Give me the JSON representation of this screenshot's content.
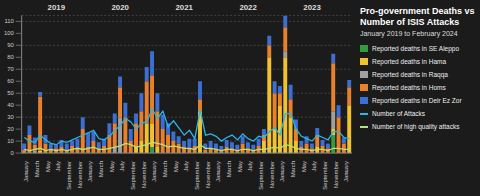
{
  "chart_data": {
    "type": "bar",
    "title": "Pro-government Deaths vs Number of ISIS Attacks",
    "subtitle": "January 2019 to February 2024",
    "categories": [
      "January",
      null,
      "March",
      null,
      "May",
      null,
      "July",
      null,
      "September",
      null,
      "November",
      null,
      "January",
      null,
      "March",
      null,
      "May",
      null,
      "July",
      null,
      "September",
      null,
      "November",
      null,
      "January",
      null,
      "March",
      null,
      "May",
      null,
      "July",
      null,
      "September",
      null,
      "November",
      null,
      "January",
      null,
      "March",
      null,
      "May",
      null,
      "July",
      null,
      "September",
      null,
      "November",
      null,
      "January",
      null,
      "March",
      null,
      "May",
      null,
      "July",
      null,
      "September",
      null,
      "November",
      null,
      "January",
      null
    ],
    "series": [
      {
        "name": "Reported deaths in SE Aleppo",
        "type": "bar",
        "color": "#2e9e3e",
        "values": [
          0,
          0,
          0,
          0,
          0,
          0,
          0,
          0,
          0,
          0,
          0,
          0,
          0,
          0,
          0,
          0,
          0,
          0,
          0,
          0,
          0,
          0,
          0,
          0,
          5,
          0,
          0,
          0,
          0,
          0,
          0,
          0,
          0,
          0,
          0,
          0,
          0,
          0,
          0,
          0,
          0,
          0,
          0,
          0,
          0,
          0,
          0,
          0,
          0,
          0,
          0,
          0,
          0,
          0,
          0,
          0,
          0,
          0,
          15,
          0,
          0,
          0
        ]
      },
      {
        "name": "Reported deaths in Hama",
        "type": "bar",
        "color": "#f2c12e",
        "values": [
          0,
          0,
          0,
          2,
          0,
          0,
          0,
          0,
          0,
          0,
          0,
          0,
          0,
          0,
          0,
          0,
          0,
          0,
          0,
          0,
          0,
          5,
          10,
          25,
          20,
          5,
          0,
          0,
          0,
          0,
          0,
          0,
          0,
          35,
          0,
          0,
          0,
          0,
          0,
          0,
          0,
          0,
          0,
          0,
          0,
          10,
          80,
          20,
          40,
          80,
          30,
          10,
          0,
          0,
          0,
          5,
          0,
          0,
          5,
          0,
          0,
          40
        ]
      },
      {
        "name": "Reported deaths in Raqqa",
        "type": "bar",
        "color": "#a0a0a0",
        "values": [
          0,
          0,
          2,
          0,
          0,
          0,
          0,
          0,
          0,
          0,
          0,
          0,
          0,
          0,
          0,
          0,
          0,
          5,
          30,
          0,
          0,
          0,
          0,
          0,
          0,
          0,
          0,
          0,
          0,
          0,
          0,
          0,
          0,
          0,
          0,
          0,
          0,
          0,
          0,
          0,
          0,
          0,
          0,
          0,
          0,
          0,
          0,
          0,
          0,
          5,
          0,
          0,
          0,
          0,
          0,
          0,
          0,
          0,
          15,
          0,
          0,
          0
        ]
      },
      {
        "name": "Reported deaths in Homs",
        "type": "bar",
        "color": "#e8812a",
        "values": [
          3,
          15,
          5,
          45,
          8,
          3,
          4,
          5,
          3,
          6,
          4,
          20,
          5,
          10,
          4,
          6,
          15,
          20,
          25,
          30,
          10,
          20,
          25,
          35,
          40,
          30,
          20,
          15,
          10,
          8,
          5,
          4,
          6,
          10,
          3,
          4,
          3,
          2,
          5,
          4,
          3,
          8,
          4,
          3,
          6,
          5,
          10,
          30,
          10,
          20,
          15,
          10,
          5,
          8,
          4,
          10,
          6,
          4,
          40,
          30,
          8,
          15
        ]
      },
      {
        "name": "Reported deaths in Deir Ez Zor",
        "type": "bar",
        "color": "#3b6fd4",
        "values": [
          5,
          8,
          6,
          4,
          7,
          5,
          3,
          6,
          5,
          4,
          8,
          10,
          12,
          8,
          5,
          6,
          10,
          8,
          9,
          12,
          10,
          8,
          15,
          12,
          20,
          15,
          12,
          10,
          8,
          6,
          5,
          8,
          6,
          15,
          5,
          6,
          5,
          4,
          6,
          5,
          4,
          6,
          5,
          4,
          6,
          5,
          8,
          10,
          6,
          10,
          12,
          8,
          5,
          6,
          4,
          6,
          5,
          4,
          8,
          10,
          5,
          6
        ]
      },
      {
        "name": "Number of Attacks",
        "type": "line",
        "color": "#29b6e8",
        "values": [
          13,
          10,
          9,
          15,
          11,
          8,
          7,
          10,
          9,
          11,
          13,
          15,
          17,
          19,
          12,
          11,
          14,
          19,
          23,
          29,
          26,
          20,
          25,
          26,
          37,
          29,
          35,
          22,
          27,
          21,
          15,
          19,
          12,
          36,
          15,
          16,
          14,
          10,
          13,
          15,
          11,
          16,
          12,
          10,
          14,
          13,
          18,
          21,
          15,
          33,
          33,
          20,
          14,
          12,
          10,
          15,
          13,
          11,
          18,
          18,
          13,
          12
        ]
      },
      {
        "name": "Number of high quality attacks",
        "type": "line",
        "color": "#b5e37a",
        "values": [
          3,
          2,
          3,
          4,
          2,
          3,
          2,
          3,
          2,
          3,
          4,
          3,
          4,
          5,
          3,
          3,
          4,
          5,
          6,
          8,
          7,
          5,
          6,
          7,
          9,
          8,
          7,
          5,
          6,
          5,
          4,
          4,
          3,
          7,
          4,
          4,
          3,
          2,
          3,
          3,
          2,
          3,
          3,
          2,
          3,
          3,
          4,
          5,
          4,
          7,
          6,
          4,
          3,
          3,
          2,
          3,
          3,
          2,
          4,
          4,
          3,
          3
        ]
      }
    ],
    "ylim": [
      0,
      115
    ],
    "yticks": [
      0,
      10,
      20,
      30,
      40,
      50,
      60,
      70,
      80,
      90,
      100,
      110
    ],
    "stacked": true,
    "grid": true,
    "legend": "right",
    "annotations": [
      {
        "text": "2019",
        "x": 6
      },
      {
        "text": "2020",
        "x": 18
      },
      {
        "text": "2021",
        "x": 30
      },
      {
        "text": "2022",
        "x": 42
      },
      {
        "text": "2023",
        "x": 54
      }
    ]
  }
}
